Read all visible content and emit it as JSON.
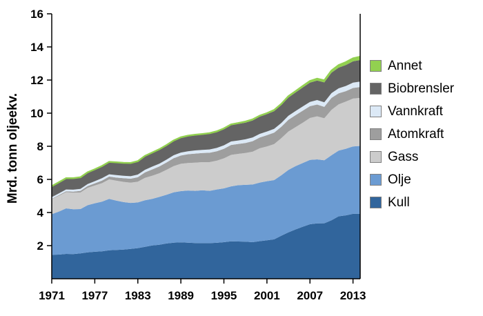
{
  "chart_data": {
    "type": "area",
    "stacked": true,
    "title": "",
    "xlabel": "",
    "ylabel": "Mrd. tonn oljeekv.",
    "x_start": 1971,
    "x_end": 2014,
    "ylim": [
      0,
      16
    ],
    "yticks": [
      2,
      4,
      6,
      8,
      10,
      12,
      14,
      16
    ],
    "xticks": [
      1971,
      1977,
      1983,
      1989,
      1995,
      2001,
      2007,
      2013
    ],
    "background": "#ffffff",
    "axis_color": "#000000",
    "series": [
      {
        "name": "Kull",
        "color": "#31659C",
        "values": [
          1.45,
          1.46,
          1.5,
          1.49,
          1.53,
          1.59,
          1.63,
          1.66,
          1.72,
          1.74,
          1.76,
          1.8,
          1.85,
          1.93,
          2.01,
          2.05,
          2.13,
          2.18,
          2.2,
          2.18,
          2.16,
          2.15,
          2.15,
          2.17,
          2.21,
          2.26,
          2.25,
          2.24,
          2.21,
          2.27,
          2.32,
          2.38,
          2.6,
          2.8,
          2.98,
          3.14,
          3.29,
          3.34,
          3.35,
          3.53,
          3.77,
          3.83,
          3.92,
          3.92
        ]
      },
      {
        "name": "Olje",
        "color": "#6B9BD2",
        "values": [
          2.45,
          2.6,
          2.75,
          2.71,
          2.68,
          2.85,
          2.93,
          3.0,
          3.1,
          2.98,
          2.87,
          2.78,
          2.76,
          2.81,
          2.81,
          2.89,
          2.94,
          3.04,
          3.09,
          3.15,
          3.15,
          3.19,
          3.16,
          3.22,
          3.25,
          3.32,
          3.4,
          3.43,
          3.48,
          3.54,
          3.57,
          3.58,
          3.65,
          3.77,
          3.82,
          3.85,
          3.89,
          3.87,
          3.81,
          3.93,
          3.97,
          4.02,
          4.07,
          4.1
        ]
      },
      {
        "name": "Gass",
        "color": "#CCCCCC",
        "values": [
          0.9,
          0.95,
          0.98,
          1.0,
          1.0,
          1.05,
          1.07,
          1.11,
          1.18,
          1.2,
          1.22,
          1.22,
          1.25,
          1.35,
          1.4,
          1.43,
          1.51,
          1.58,
          1.65,
          1.66,
          1.7,
          1.7,
          1.73,
          1.74,
          1.81,
          1.9,
          1.89,
          1.92,
          1.98,
          2.07,
          2.1,
          2.17,
          2.24,
          2.32,
          2.36,
          2.43,
          2.53,
          2.6,
          2.53,
          2.74,
          2.79,
          2.85,
          2.89,
          2.9
        ]
      },
      {
        "name": "Atomkraft",
        "color": "#9E9E9E",
        "values": [
          0.03,
          0.04,
          0.05,
          0.06,
          0.1,
          0.11,
          0.13,
          0.16,
          0.17,
          0.19,
          0.22,
          0.24,
          0.27,
          0.33,
          0.38,
          0.41,
          0.44,
          0.48,
          0.5,
          0.53,
          0.55,
          0.55,
          0.57,
          0.57,
          0.58,
          0.6,
          0.6,
          0.61,
          0.64,
          0.65,
          0.68,
          0.69,
          0.69,
          0.71,
          0.72,
          0.73,
          0.71,
          0.71,
          0.69,
          0.72,
          0.67,
          0.63,
          0.64,
          0.66
        ]
      },
      {
        "name": "Vannkraft",
        "color": "#DCE9F6",
        "values": [
          0.1,
          0.11,
          0.11,
          0.12,
          0.12,
          0.12,
          0.13,
          0.14,
          0.14,
          0.15,
          0.15,
          0.15,
          0.16,
          0.16,
          0.17,
          0.17,
          0.17,
          0.18,
          0.18,
          0.18,
          0.19,
          0.19,
          0.2,
          0.2,
          0.21,
          0.21,
          0.21,
          0.22,
          0.22,
          0.22,
          0.22,
          0.23,
          0.23,
          0.24,
          0.25,
          0.26,
          0.26,
          0.27,
          0.28,
          0.29,
          0.3,
          0.31,
          0.32,
          0.33
        ]
      },
      {
        "name": "Biobrensler",
        "color": "#646464",
        "values": [
          0.65,
          0.66,
          0.67,
          0.68,
          0.69,
          0.7,
          0.71,
          0.72,
          0.73,
          0.75,
          0.76,
          0.78,
          0.79,
          0.81,
          0.82,
          0.84,
          0.85,
          0.86,
          0.88,
          0.9,
          0.91,
          0.92,
          0.94,
          0.95,
          0.97,
          0.98,
          1.0,
          1.01,
          1.03,
          1.04,
          1.05,
          1.07,
          1.08,
          1.1,
          1.12,
          1.14,
          1.16,
          1.18,
          1.2,
          1.23,
          1.25,
          1.27,
          1.29,
          1.3
        ]
      },
      {
        "name": "Annet",
        "color": "#92D050",
        "values": [
          0.01,
          0.01,
          0.01,
          0.01,
          0.01,
          0.01,
          0.01,
          0.02,
          0.02,
          0.02,
          0.02,
          0.02,
          0.02,
          0.03,
          0.03,
          0.03,
          0.03,
          0.03,
          0.04,
          0.04,
          0.04,
          0.04,
          0.04,
          0.05,
          0.05,
          0.05,
          0.05,
          0.06,
          0.06,
          0.06,
          0.06,
          0.07,
          0.07,
          0.08,
          0.08,
          0.09,
          0.1,
          0.11,
          0.12,
          0.13,
          0.15,
          0.17,
          0.18,
          0.2
        ]
      }
    ],
    "legend_order": [
      "Annet",
      "Biobrensler",
      "Vannkraft",
      "Atomkraft",
      "Gass",
      "Olje",
      "Kull"
    ],
    "legend_position": "right",
    "grid": false
  }
}
